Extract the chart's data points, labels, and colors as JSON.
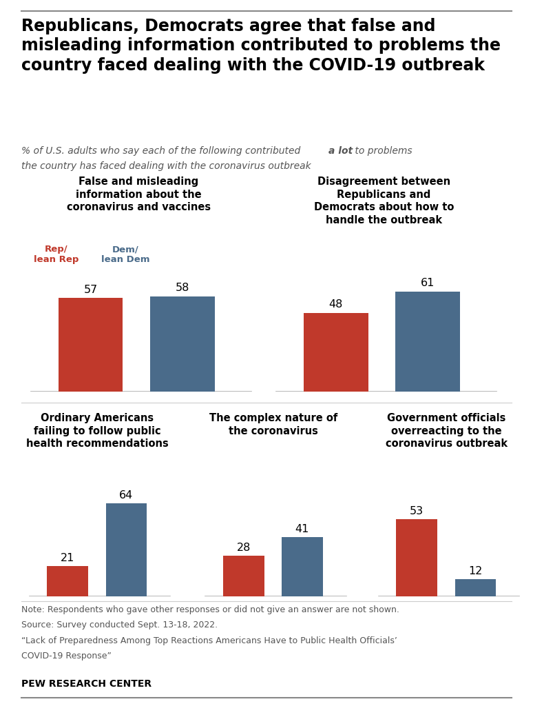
{
  "title": "Republicans, Democrats agree that false and\nmisleading information contributed to problems the\ncountry faced dealing with the COVID-19 outbreak",
  "rep_color": "#C0392B",
  "dem_color": "#4A6B8A",
  "rep_label": "Rep/\nlean Rep",
  "dem_label": "Dem/\nlean Dem",
  "charts": [
    {
      "title": "False and misleading\ninformation about the\ncoronavirus and vaccines",
      "rep": 57,
      "dem": 58,
      "row": 0,
      "col": 0
    },
    {
      "title": "Disagreement between\nRepublicans and\nDemocrats about how to\nhandle the outbreak",
      "rep": 48,
      "dem": 61,
      "row": 0,
      "col": 1
    },
    {
      "title": "Ordinary Americans\nfailing to follow public\nhealth recommendations",
      "rep": 21,
      "dem": 64,
      "row": 1,
      "col": 0
    },
    {
      "title": "The complex nature of\nthe coronavirus",
      "rep": 28,
      "dem": 41,
      "row": 1,
      "col": 1
    },
    {
      "title": "Government officials\noverreacting to the\ncoronavirus outbreak",
      "rep": 53,
      "dem": 12,
      "row": 1,
      "col": 2
    }
  ],
  "note_line1": "Note: Respondents who gave other responses or did not give an answer are not shown.",
  "note_line2": "Source: Survey conducted Sept. 13-18, 2022.",
  "note_line3": "“Lack of Preparedness Among Top Reactions Americans Have to Public Health Officials’",
  "note_line4": "COVID-19 Response”",
  "source_label": "PEW RESEARCH CENTER",
  "background_color": "#FFFFFF",
  "ylim": [
    0,
    75
  ],
  "title_fontsize": 17,
  "subtitle_fontsize": 10,
  "chart_title_fontsize": 10.5,
  "bar_value_fontsize": 11.5,
  "legend_fontsize": 9.5,
  "note_fontsize": 9,
  "pew_fontsize": 10
}
